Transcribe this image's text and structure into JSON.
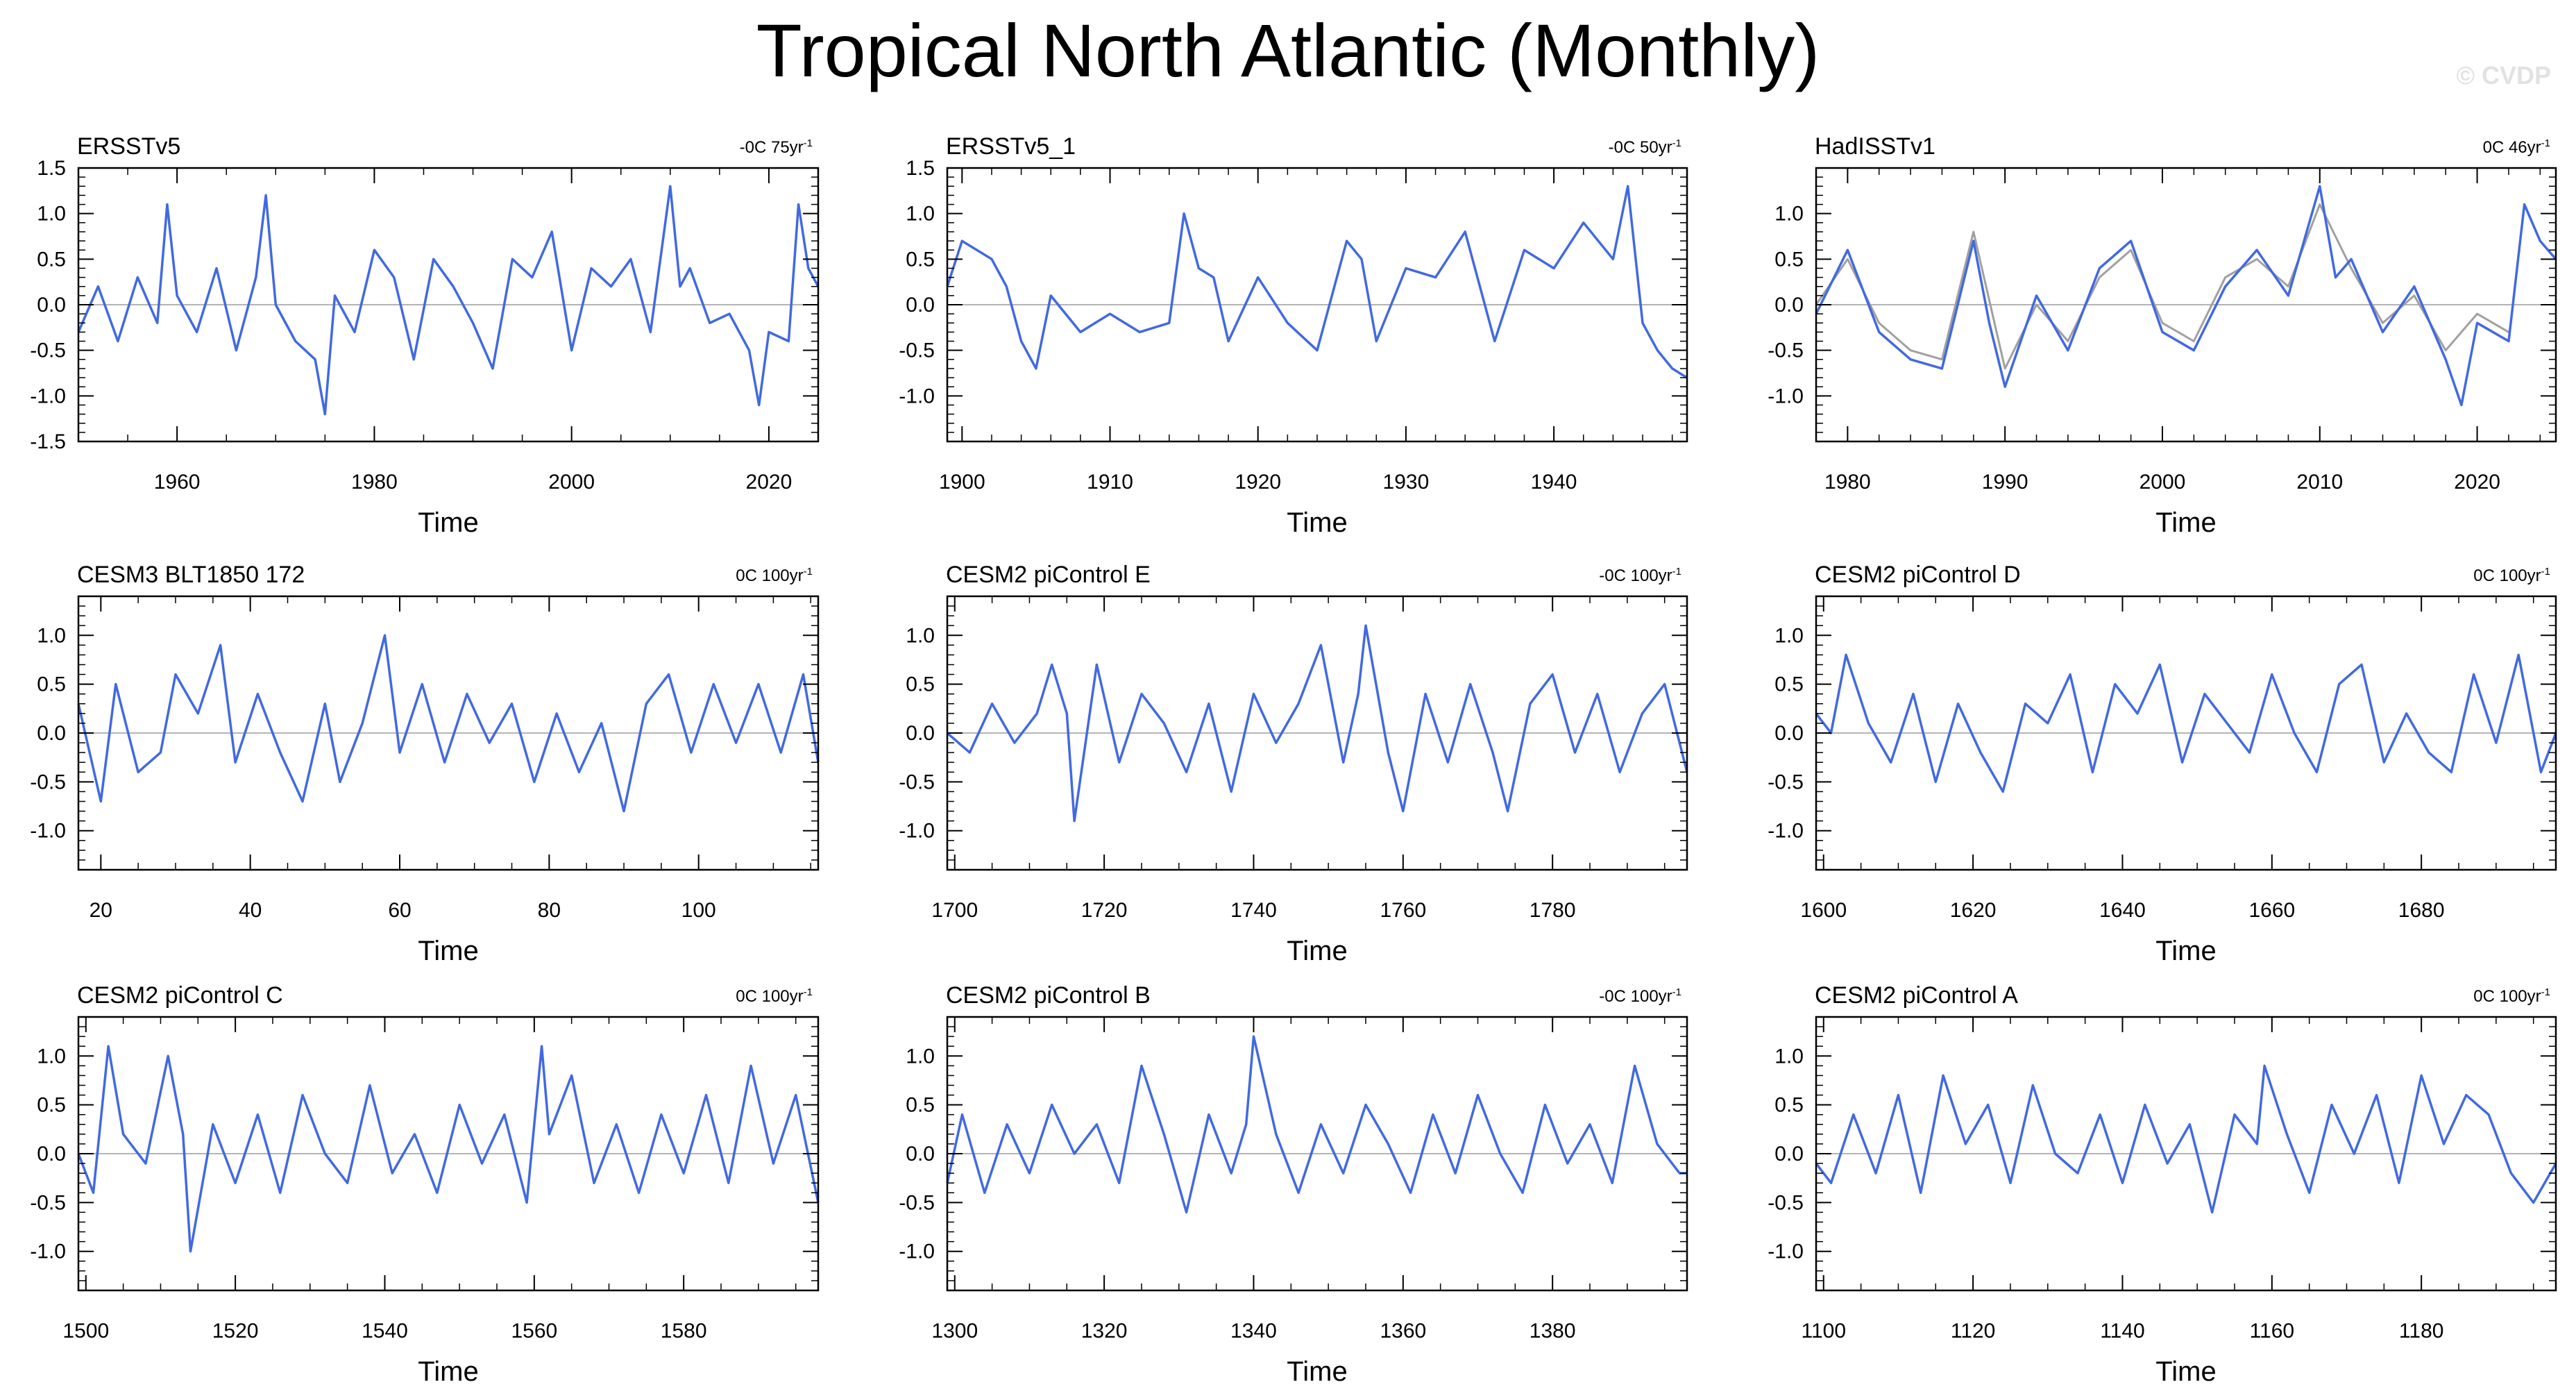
{
  "figure": {
    "title": "Tropical North Atlantic (Monthly)",
    "watermark": "© CVDP"
  },
  "colors": {
    "series": "#4169e1",
    "overlay": "#a0a0a0",
    "axis": "#000000",
    "zero_line": "#b4b4b4"
  },
  "chart_data": [
    {
      "type": "line",
      "title": "ERSSTv5",
      "trend": "-0C 75yr",
      "xlabel": "Time",
      "xlim": [
        1950,
        2025
      ],
      "ylim": [
        -1.5,
        1.5
      ],
      "xticks": [
        1960,
        1980,
        2000,
        2020
      ],
      "xtick_labels": [
        "1960",
        "1980",
        "2000",
        "2020"
      ],
      "yticks": [
        -1.5,
        -1.0,
        -0.5,
        0.0,
        0.5,
        1.0,
        1.5
      ],
      "ytick_labels": [
        "-1.5",
        "-1.0",
        "-0.5",
        "0.0",
        "0.5",
        "1.0",
        "1.5"
      ],
      "series": [
        {
          "name": "ERSSTv5",
          "x": [
            1950,
            1952,
            1954,
            1956,
            1958,
            1959,
            1960,
            1962,
            1964,
            1966,
            1968,
            1969,
            1970,
            1972,
            1974,
            1975,
            1976,
            1978,
            1980,
            1982,
            1984,
            1986,
            1988,
            1990,
            1992,
            1994,
            1996,
            1998,
            2000,
            2002,
            2004,
            2006,
            2008,
            2010,
            2011,
            2012,
            2014,
            2016,
            2018,
            2019,
            2020,
            2022,
            2023,
            2024,
            2025
          ],
          "y": [
            -0.3,
            0.2,
            -0.4,
            0.3,
            -0.2,
            1.1,
            0.1,
            -0.3,
            0.4,
            -0.5,
            0.3,
            1.2,
            0.0,
            -0.4,
            -0.6,
            -1.2,
            0.1,
            -0.3,
            0.6,
            0.3,
            -0.6,
            0.5,
            0.2,
            -0.2,
            -0.7,
            0.5,
            0.3,
            0.8,
            -0.5,
            0.4,
            0.2,
            0.5,
            -0.3,
            1.3,
            0.2,
            0.4,
            -0.2,
            -0.1,
            -0.5,
            -1.1,
            -0.3,
            -0.4,
            1.1,
            0.4,
            0.2
          ]
        }
      ]
    },
    {
      "type": "line",
      "title": "ERSSTv5_1",
      "trend": "-0C 50yr",
      "xlabel": "Time",
      "xlim": [
        1899,
        1949
      ],
      "ylim": [
        -1.5,
        1.5
      ],
      "xticks": [
        1900,
        1910,
        1920,
        1930,
        1940
      ],
      "xtick_labels": [
        "1900",
        "1910",
        "1920",
        "1930",
        "1940"
      ],
      "yticks": [
        -1.0,
        -0.5,
        0.0,
        0.5,
        1.0,
        1.5
      ],
      "ytick_labels": [
        "-1.0",
        "-0.5",
        "0.0",
        "0.5",
        "1.0",
        "1.5"
      ],
      "series": [
        {
          "name": "ERSSTv5_1",
          "x": [
            1899,
            1900,
            1902,
            1903,
            1904,
            1905,
            1906,
            1908,
            1910,
            1912,
            1914,
            1915,
            1916,
            1917,
            1918,
            1920,
            1922,
            1924,
            1926,
            1927,
            1928,
            1930,
            1932,
            1934,
            1935,
            1936,
            1938,
            1940,
            1942,
            1944,
            1945,
            1946,
            1947,
            1948,
            1949
          ],
          "y": [
            0.2,
            0.7,
            0.5,
            0.2,
            -0.4,
            -0.7,
            0.1,
            -0.3,
            -0.1,
            -0.3,
            -0.2,
            1.0,
            0.4,
            0.3,
            -0.4,
            0.3,
            -0.2,
            -0.5,
            0.7,
            0.5,
            -0.4,
            0.4,
            0.3,
            0.8,
            0.2,
            -0.4,
            0.6,
            0.4,
            0.9,
            0.5,
            1.3,
            -0.2,
            -0.5,
            -0.7,
            -0.8
          ]
        }
      ]
    },
    {
      "type": "line",
      "title": "HadISSTv1",
      "trend": "0C 46yr",
      "xlabel": "Time",
      "xlim": [
        1978,
        2025
      ],
      "ylim": [
        -1.5,
        1.5
      ],
      "xticks": [
        1980,
        1990,
        2000,
        2010,
        2020
      ],
      "xtick_labels": [
        "1980",
        "1990",
        "2000",
        "2010",
        "2020"
      ],
      "yticks": [
        -1.0,
        -0.5,
        0.0,
        0.5,
        1.0
      ],
      "ytick_labels": [
        "-1.0",
        "-0.5",
        "0.0",
        "0.5",
        "1.0"
      ],
      "series": [
        {
          "name": "HadISSTv1",
          "x": [
            1978,
            1980,
            1982,
            1984,
            1986,
            1988,
            1989,
            1990,
            1992,
            1994,
            1996,
            1998,
            2000,
            2002,
            2004,
            2006,
            2008,
            2010,
            2011,
            2012,
            2014,
            2016,
            2018,
            2019,
            2020,
            2022,
            2023,
            2024,
            2025
          ],
          "y": [
            -0.1,
            0.6,
            -0.3,
            -0.6,
            -0.7,
            0.7,
            -0.2,
            -0.9,
            0.1,
            -0.5,
            0.4,
            0.7,
            -0.3,
            -0.5,
            0.2,
            0.6,
            0.1,
            1.3,
            0.3,
            0.5,
            -0.3,
            0.2,
            -0.6,
            -1.1,
            -0.2,
            -0.4,
            1.1,
            0.7,
            0.5
          ]
        },
        {
          "name": "overlay",
          "x": [
            1978,
            1980,
            1982,
            1984,
            1986,
            1988,
            1990,
            1992,
            1994,
            1996,
            1998,
            2000,
            2002,
            2004,
            2006,
            2008,
            2010,
            2012,
            2014,
            2016,
            2018,
            2020,
            2022
          ],
          "y": [
            0.0,
            0.5,
            -0.2,
            -0.5,
            -0.6,
            0.8,
            -0.7,
            0.0,
            -0.4,
            0.3,
            0.6,
            -0.2,
            -0.4,
            0.3,
            0.5,
            0.2,
            1.1,
            0.4,
            -0.2,
            0.1,
            -0.5,
            -0.1,
            -0.3
          ]
        }
      ]
    },
    {
      "type": "line",
      "title": "CESM3 BLT1850 172",
      "trend": "0C 100yr",
      "xlabel": "Time",
      "xlim": [
        17,
        116
      ],
      "ylim": [
        -1.4,
        1.4
      ],
      "xticks": [
        20,
        40,
        60,
        80,
        100
      ],
      "xtick_labels": [
        "20",
        "40",
        "60",
        "80",
        "100"
      ],
      "yticks": [
        -1.0,
        -0.5,
        0.0,
        0.5,
        1.0
      ],
      "ytick_labels": [
        "-1.0",
        "-0.5",
        "0.0",
        "0.5",
        "1.0"
      ],
      "series": [
        {
          "name": "CESM3 BLT1850 172",
          "x": [
            17,
            20,
            22,
            25,
            28,
            30,
            33,
            36,
            38,
            41,
            44,
            47,
            50,
            52,
            55,
            58,
            60,
            63,
            66,
            69,
            72,
            75,
            78,
            81,
            84,
            87,
            90,
            93,
            96,
            99,
            102,
            105,
            108,
            111,
            114,
            116
          ],
          "y": [
            0.3,
            -0.7,
            0.5,
            -0.4,
            -0.2,
            0.6,
            0.2,
            0.9,
            -0.3,
            0.4,
            -0.2,
            -0.7,
            0.3,
            -0.5,
            0.1,
            1.0,
            -0.2,
            0.5,
            -0.3,
            0.4,
            -0.1,
            0.3,
            -0.5,
            0.2,
            -0.4,
            0.1,
            -0.8,
            0.3,
            0.6,
            -0.2,
            0.5,
            -0.1,
            0.5,
            -0.2,
            0.6,
            -0.3
          ]
        }
      ]
    },
    {
      "type": "line",
      "title": "CESM2 piControl E",
      "trend": "-0C 100yr",
      "xlabel": "Time",
      "xlim": [
        1699,
        1798
      ],
      "ylim": [
        -1.4,
        1.4
      ],
      "xticks": [
        1700,
        1720,
        1740,
        1760,
        1780
      ],
      "xtick_labels": [
        "1700",
        "1720",
        "1740",
        "1760",
        "1780"
      ],
      "yticks": [
        -1.0,
        -0.5,
        0.0,
        0.5,
        1.0
      ],
      "ytick_labels": [
        "-1.0",
        "-0.5",
        "0.0",
        "0.5",
        "1.0"
      ],
      "series": [
        {
          "name": "CESM2 piControl E",
          "x": [
            1699,
            1702,
            1705,
            1708,
            1711,
            1713,
            1715,
            1716,
            1719,
            1722,
            1725,
            1728,
            1731,
            1734,
            1737,
            1740,
            1743,
            1746,
            1749,
            1752,
            1754,
            1755,
            1758,
            1760,
            1763,
            1766,
            1769,
            1772,
            1774,
            1777,
            1780,
            1783,
            1786,
            1789,
            1792,
            1795,
            1798
          ],
          "y": [
            0.0,
            -0.2,
            0.3,
            -0.1,
            0.2,
            0.7,
            0.2,
            -0.9,
            0.7,
            -0.3,
            0.4,
            0.1,
            -0.4,
            0.3,
            -0.6,
            0.4,
            -0.1,
            0.3,
            0.9,
            -0.3,
            0.4,
            1.1,
            -0.2,
            -0.8,
            0.4,
            -0.3,
            0.5,
            -0.2,
            -0.8,
            0.3,
            0.6,
            -0.2,
            0.4,
            -0.4,
            0.2,
            0.5,
            -0.4
          ]
        }
      ]
    },
    {
      "type": "line",
      "title": "CESM2 piControl D",
      "trend": "0C 100yr",
      "xlabel": "Time",
      "xlim": [
        1599,
        1698
      ],
      "ylim": [
        -1.4,
        1.4
      ],
      "xticks": [
        1600,
        1620,
        1640,
        1660,
        1680
      ],
      "xtick_labels": [
        "1600",
        "1620",
        "1640",
        "1660",
        "1680"
      ],
      "yticks": [
        -1.0,
        -0.5,
        0.0,
        0.5,
        1.0
      ],
      "ytick_labels": [
        "-1.0",
        "-0.5",
        "0.0",
        "0.5",
        "1.0"
      ],
      "series": [
        {
          "name": "CESM2 piControl D",
          "x": [
            1599,
            1601,
            1603,
            1606,
            1609,
            1612,
            1615,
            1618,
            1621,
            1624,
            1627,
            1630,
            1633,
            1636,
            1639,
            1642,
            1645,
            1648,
            1651,
            1654,
            1657,
            1660,
            1663,
            1666,
            1669,
            1672,
            1675,
            1678,
            1681,
            1684,
            1687,
            1690,
            1693,
            1696,
            1698
          ],
          "y": [
            0.2,
            0.0,
            0.8,
            0.1,
            -0.3,
            0.4,
            -0.5,
            0.3,
            -0.2,
            -0.6,
            0.3,
            0.1,
            0.6,
            -0.4,
            0.5,
            0.2,
            0.7,
            -0.3,
            0.4,
            0.1,
            -0.2,
            0.6,
            0.0,
            -0.4,
            0.5,
            0.7,
            -0.3,
            0.2,
            -0.2,
            -0.4,
            0.6,
            -0.1,
            0.8,
            -0.4,
            0.0
          ]
        }
      ]
    },
    {
      "type": "line",
      "title": "CESM2 piControl C",
      "trend": "0C 100yr",
      "xlabel": "Time",
      "xlim": [
        1499,
        1598
      ],
      "ylim": [
        -1.4,
        1.4
      ],
      "xticks": [
        1500,
        1520,
        1540,
        1560,
        1580
      ],
      "xtick_labels": [
        "1500",
        "1520",
        "1540",
        "1560",
        "1580"
      ],
      "yticks": [
        -1.0,
        -0.5,
        0.0,
        0.5,
        1.0
      ],
      "ytick_labels": [
        "-1.0",
        "-0.5",
        "0.0",
        "0.5",
        "1.0"
      ],
      "series": [
        {
          "name": "CESM2 piControl C",
          "x": [
            1499,
            1501,
            1503,
            1505,
            1508,
            1511,
            1513,
            1514,
            1517,
            1520,
            1523,
            1526,
            1529,
            1532,
            1535,
            1538,
            1541,
            1544,
            1547,
            1550,
            1553,
            1556,
            1559,
            1561,
            1562,
            1565,
            1568,
            1571,
            1574,
            1577,
            1580,
            1583,
            1586,
            1589,
            1592,
            1595,
            1598
          ],
          "y": [
            0.0,
            -0.4,
            1.1,
            0.2,
            -0.1,
            1.0,
            0.2,
            -1.0,
            0.3,
            -0.3,
            0.4,
            -0.4,
            0.6,
            0.0,
            -0.3,
            0.7,
            -0.2,
            0.2,
            -0.4,
            0.5,
            -0.1,
            0.4,
            -0.5,
            1.1,
            0.2,
            0.8,
            -0.3,
            0.3,
            -0.4,
            0.4,
            -0.2,
            0.6,
            -0.3,
            0.9,
            -0.1,
            0.6,
            -0.5
          ]
        }
      ]
    },
    {
      "type": "line",
      "title": "CESM2 piControl B",
      "trend": "-0C 100yr",
      "xlabel": "Time",
      "xlim": [
        1299,
        1398
      ],
      "ylim": [
        -1.4,
        1.4
      ],
      "xticks": [
        1300,
        1320,
        1340,
        1360,
        1380
      ],
      "xtick_labels": [
        "1300",
        "1320",
        "1340",
        "1360",
        "1380"
      ],
      "yticks": [
        -1.0,
        -0.5,
        0.0,
        0.5,
        1.0
      ],
      "ytick_labels": [
        "-1.0",
        "-0.5",
        "0.0",
        "0.5",
        "1.0"
      ],
      "series": [
        {
          "name": "CESM2 piControl B",
          "x": [
            1299,
            1301,
            1304,
            1307,
            1310,
            1313,
            1316,
            1319,
            1322,
            1325,
            1328,
            1331,
            1334,
            1337,
            1339,
            1340,
            1343,
            1346,
            1349,
            1352,
            1355,
            1358,
            1361,
            1364,
            1367,
            1370,
            1373,
            1376,
            1379,
            1382,
            1385,
            1388,
            1391,
            1394,
            1397,
            1398
          ],
          "y": [
            -0.3,
            0.4,
            -0.4,
            0.3,
            -0.2,
            0.5,
            0.0,
            0.3,
            -0.3,
            0.9,
            0.2,
            -0.6,
            0.4,
            -0.2,
            0.3,
            1.2,
            0.2,
            -0.4,
            0.3,
            -0.2,
            0.5,
            0.1,
            -0.4,
            0.4,
            -0.2,
            0.6,
            0.0,
            -0.4,
            0.5,
            -0.1,
            0.3,
            -0.3,
            0.9,
            0.1,
            -0.2,
            -0.2
          ]
        }
      ]
    },
    {
      "type": "line",
      "title": "CESM2 piControl A",
      "trend": "0C 100yr",
      "xlabel": "Time",
      "xlim": [
        1099,
        1198
      ],
      "ylim": [
        -1.4,
        1.4
      ],
      "xticks": [
        1100,
        1120,
        1140,
        1160,
        1180
      ],
      "xtick_labels": [
        "1100",
        "1120",
        "1140",
        "1160",
        "1180"
      ],
      "yticks": [
        -1.0,
        -0.5,
        0.0,
        0.5,
        1.0
      ],
      "ytick_labels": [
        "-1.0",
        "-0.5",
        "0.0",
        "0.5",
        "1.0"
      ],
      "series": [
        {
          "name": "CESM2 piControl A",
          "x": [
            1099,
            1101,
            1104,
            1107,
            1110,
            1113,
            1116,
            1119,
            1122,
            1125,
            1128,
            1131,
            1134,
            1137,
            1140,
            1143,
            1146,
            1149,
            1152,
            1155,
            1158,
            1159,
            1162,
            1165,
            1168,
            1171,
            1174,
            1177,
            1180,
            1183,
            1186,
            1189,
            1192,
            1195,
            1198
          ],
          "y": [
            -0.1,
            -0.3,
            0.4,
            -0.2,
            0.6,
            -0.4,
            0.8,
            0.1,
            0.5,
            -0.3,
            0.7,
            0.0,
            -0.2,
            0.4,
            -0.3,
            0.5,
            -0.1,
            0.3,
            -0.6,
            0.4,
            0.1,
            0.9,
            0.2,
            -0.4,
            0.5,
            0.0,
            0.6,
            -0.3,
            0.8,
            0.1,
            0.6,
            0.4,
            -0.2,
            -0.5,
            -0.1
          ]
        }
      ]
    }
  ]
}
